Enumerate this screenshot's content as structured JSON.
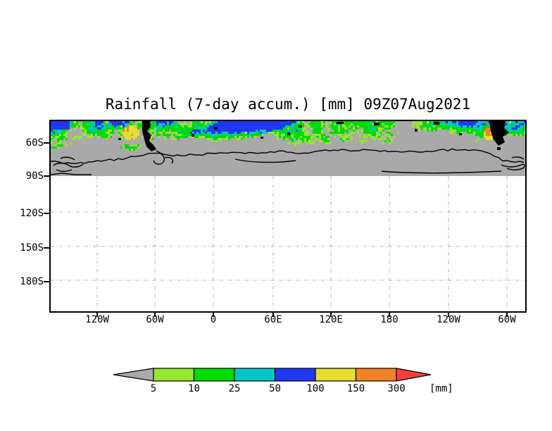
{
  "title": "Rainfall (7-day accum.) [mm] 09Z07Aug2021",
  "y_axis": {
    "tick_labels": [
      "60S",
      "90S",
      "120S",
      "150S",
      "180S"
    ]
  },
  "x_axis": {
    "tick_labels": [
      "120W",
      "60W",
      "0",
      "60E",
      "120E",
      "180",
      "120W",
      "60W"
    ]
  },
  "colorbar": {
    "tick_labels": [
      "5",
      "10",
      "25",
      "50",
      "100",
      "150",
      "300"
    ],
    "unit_label": "[mm]",
    "below_min_color": "#aaaaaa",
    "segment_colors": [
      "#96e632",
      "#00dc00",
      "#00c8c8",
      "#2038f0",
      "#e6dc32",
      "#f08228"
    ],
    "above_max_color": "#fa3c3c"
  },
  "map": {
    "no_rain_color": "#a9a9a9",
    "coastline_color": "#000000",
    "grid_color": "#b4b4b4",
    "rain_colors": {
      "light_green": "#96e632",
      "green": "#00dc00",
      "cyan": "#00c8c8",
      "blue": "#2038f0",
      "yellow": "#e6dc32",
      "orange": "#f08228"
    }
  },
  "chart_data": {
    "type": "heatmap",
    "title": "Rainfall (7-day accum.) [mm] 09Z07Aug2021",
    "variable": "7-day accumulated rainfall",
    "units": "mm",
    "x_tick_labels": [
      "120W",
      "60W",
      "0",
      "60E",
      "120E",
      "180",
      "120W",
      "60W"
    ],
    "y_tick_labels": [
      "60S",
      "90S",
      "120S",
      "150S",
      "180S"
    ],
    "colorbar_levels_mm": [
      5,
      10,
      25,
      50,
      100,
      150,
      300
    ],
    "colorbar_colors": [
      "#aaaaaa",
      "#96e632",
      "#00dc00",
      "#00c8c8",
      "#2038f0",
      "#e6dc32",
      "#f08228",
      "#fa3c3c"
    ],
    "legend_position": "bottom",
    "grid": "dotted lat-lon graticule",
    "notes": "Rainfall band along the Southern Ocean storm track north of the Antarctic coastline; values below 5 mm drawn gray; plot area south of 90S blank."
  }
}
